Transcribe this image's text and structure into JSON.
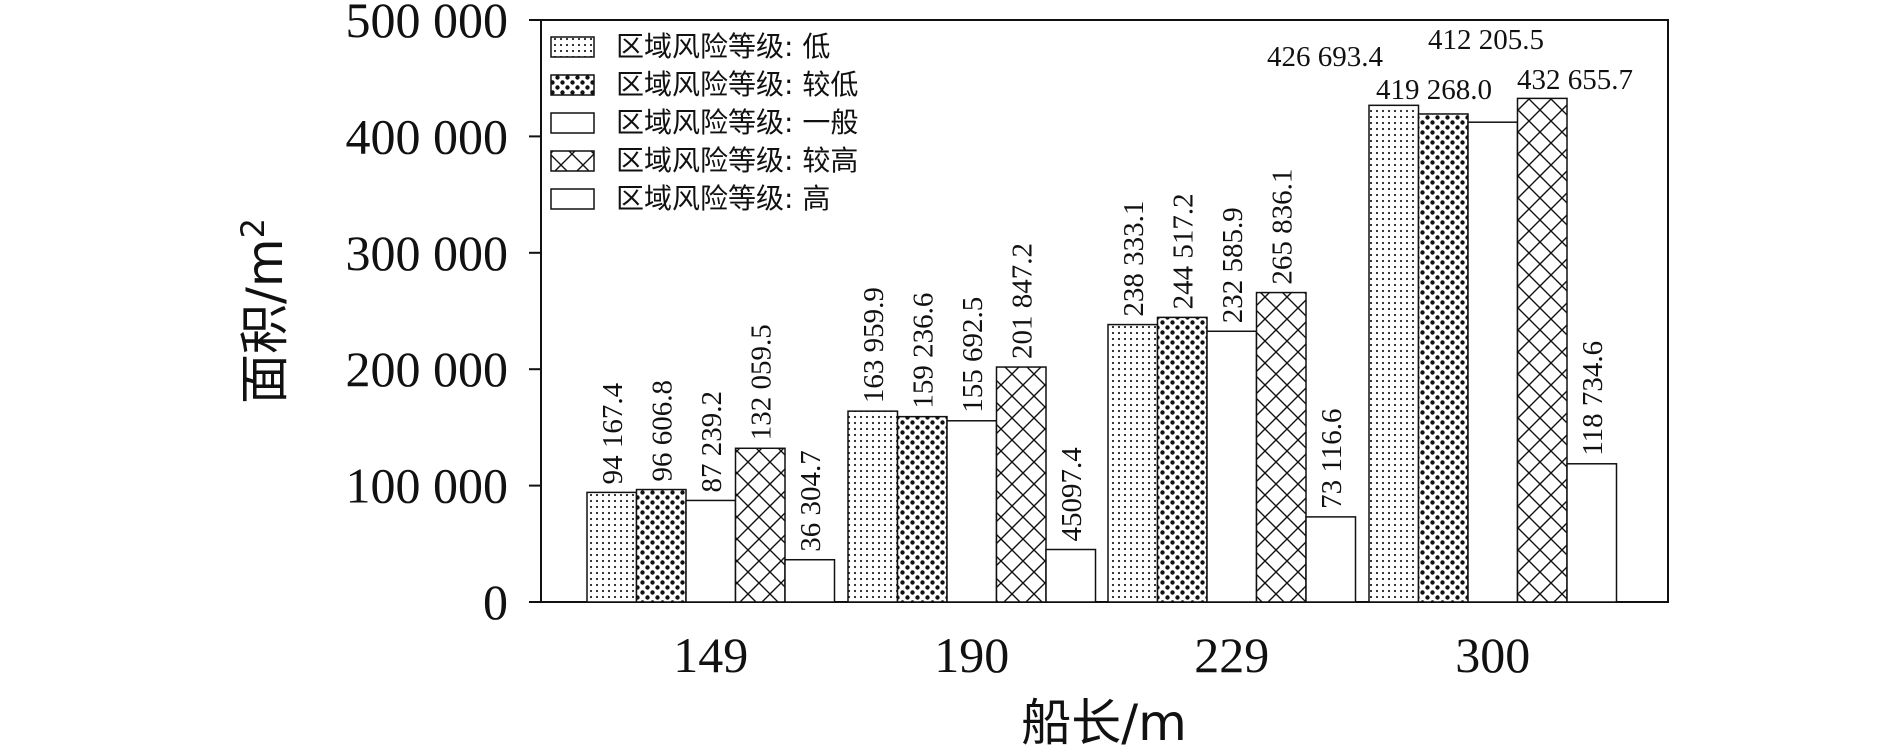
{
  "chart_data": {
    "type": "bar",
    "title": "",
    "xlabel": "船长/m",
    "ylabel": "面积/m",
    "ylabel_sup": "2",
    "categories": [
      "149",
      "190",
      "229",
      "300"
    ],
    "ylim": [
      0,
      500000
    ],
    "yticks": [
      {
        "value": 0,
        "label": "0"
      },
      {
        "value": 100000,
        "label": "100 000"
      },
      {
        "value": 200000,
        "label": "200 000"
      },
      {
        "value": 300000,
        "label": "300 000"
      },
      {
        "value": 400000,
        "label": "400 000"
      },
      {
        "value": 500000,
        "label": "500 000"
      }
    ],
    "grid": false,
    "legend_position": "top-left",
    "series": [
      {
        "name": "区域风险等级: 低",
        "pattern": "fine-dots",
        "values": [
          94167.4,
          163959.9,
          238333.1,
          426693.4
        ],
        "labels": [
          "94 167.4",
          "163 959.9",
          "238 333.1",
          "426 693.4"
        ]
      },
      {
        "name": "区域风险等级: 较低",
        "pattern": "bold-dots",
        "values": [
          96606.8,
          159236.6,
          244517.2,
          419268.0
        ],
        "labels": [
          "96 606.8",
          "159 236.6",
          "244 517.2",
          "419 268.0"
        ]
      },
      {
        "name": "区域风险等级: 一般",
        "pattern": "empty",
        "values": [
          87239.2,
          155692.5,
          232585.9,
          412205.5
        ],
        "labels": [
          "87 239.2",
          "155 692.5",
          "232 585.9",
          "412 205.5"
        ]
      },
      {
        "name": "区域风险等级: 较高",
        "pattern": "crosshatch",
        "values": [
          132059.5,
          201847.2,
          265836.1,
          432655.7
        ],
        "labels": [
          "132 059.5",
          "201 847.2",
          "265 836.1",
          "432 655.7"
        ]
      },
      {
        "name": "区域风险等级: 高",
        "pattern": "empty",
        "values": [
          36304.7,
          45097.4,
          73116.6,
          118734.6
        ],
        "labels": [
          "36 304.7",
          "45097.4",
          "73 116.6",
          "118 734.6"
        ]
      }
    ]
  }
}
